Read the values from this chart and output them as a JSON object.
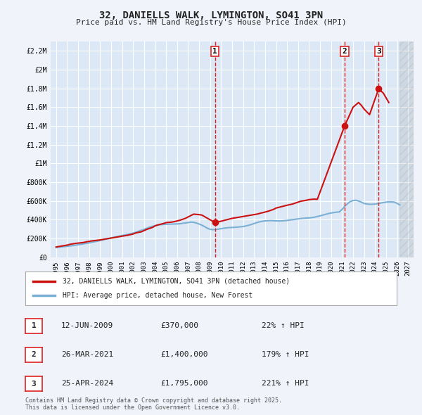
{
  "title_line1": "32, DANIELLS WALK, LYMINGTON, SO41 3PN",
  "title_line2": "Price paid vs. HM Land Registry's House Price Index (HPI)",
  "background_color": "#f0f4fa",
  "plot_bg_color": "#dce8f5",
  "grid_color": "#ffffff",
  "ylim": [
    0,
    2300000
  ],
  "yticks": [
    0,
    200000,
    400000,
    600000,
    800000,
    1000000,
    1200000,
    1400000,
    1600000,
    1800000,
    2000000,
    2200000
  ],
  "ytick_labels": [
    "£0",
    "£200K",
    "£400K",
    "£600K",
    "£800K",
    "£1M",
    "£1.2M",
    "£1.4M",
    "£1.6M",
    "£1.8M",
    "£2M",
    "£2.2M"
  ],
  "xlim_start": 1994.5,
  "xlim_end": 2027.5,
  "xticks": [
    1995,
    1996,
    1997,
    1998,
    1999,
    2000,
    2001,
    2002,
    2003,
    2004,
    2005,
    2006,
    2007,
    2008,
    2009,
    2010,
    2011,
    2012,
    2013,
    2014,
    2015,
    2016,
    2017,
    2018,
    2019,
    2020,
    2021,
    2022,
    2023,
    2024,
    2025,
    2026,
    2027
  ],
  "hpi_color": "#7ab0d4",
  "price_color": "#cc1111",
  "marker_color": "#cc1111",
  "vline_color": "#dd2222",
  "sale_points": [
    {
      "year": 2009.45,
      "price": 370000,
      "label": "1"
    },
    {
      "year": 2021.23,
      "price": 1400000,
      "label": "2"
    },
    {
      "year": 2024.32,
      "price": 1795000,
      "label": "3"
    }
  ],
  "vline_years": [
    2009.45,
    2021.23,
    2024.32
  ],
  "legend_line1": "32, DANIELLS WALK, LYMINGTON, SO41 3PN (detached house)",
  "legend_line2": "HPI: Average price, detached house, New Forest",
  "table_rows": [
    {
      "num": "1",
      "date": "12-JUN-2009",
      "price": "£370,000",
      "pct": "22% ↑ HPI"
    },
    {
      "num": "2",
      "date": "26-MAR-2021",
      "price": "£1,400,000",
      "pct": "179% ↑ HPI"
    },
    {
      "num": "3",
      "date": "25-APR-2024",
      "price": "£1,795,000",
      "pct": "221% ↑ HPI"
    }
  ],
  "footer": "Contains HM Land Registry data © Crown copyright and database right 2025.\nThis data is licensed under the Open Government Licence v3.0.",
  "hpi_data_x": [
    1995,
    1995.25,
    1995.5,
    1995.75,
    1996,
    1996.25,
    1996.5,
    1996.75,
    1997,
    1997.25,
    1997.5,
    1997.75,
    1998,
    1998.25,
    1998.5,
    1998.75,
    1999,
    1999.25,
    1999.5,
    1999.75,
    2000,
    2000.25,
    2000.5,
    2000.75,
    2001,
    2001.25,
    2001.5,
    2001.75,
    2002,
    2002.25,
    2002.5,
    2002.75,
    2003,
    2003.25,
    2003.5,
    2003.75,
    2004,
    2004.25,
    2004.5,
    2004.75,
    2005,
    2005.25,
    2005.5,
    2005.75,
    2006,
    2006.25,
    2006.5,
    2006.75,
    2007,
    2007.25,
    2007.5,
    2007.75,
    2008,
    2008.25,
    2008.5,
    2008.75,
    2009,
    2009.25,
    2009.5,
    2009.75,
    2010,
    2010.25,
    2010.5,
    2010.75,
    2011,
    2011.25,
    2011.5,
    2011.75,
    2012,
    2012.25,
    2012.5,
    2012.75,
    2013,
    2013.25,
    2013.5,
    2013.75,
    2014,
    2014.25,
    2014.5,
    2014.75,
    2015,
    2015.25,
    2015.5,
    2015.75,
    2016,
    2016.25,
    2016.5,
    2016.75,
    2017,
    2017.25,
    2017.5,
    2017.75,
    2018,
    2018.25,
    2018.5,
    2018.75,
    2019,
    2019.25,
    2019.5,
    2019.75,
    2020,
    2020.25,
    2020.5,
    2020.75,
    2021,
    2021.25,
    2021.5,
    2021.75,
    2022,
    2022.25,
    2022.5,
    2022.75,
    2023,
    2023.25,
    2023.5,
    2023.75,
    2024,
    2024.25,
    2024.5,
    2024.75,
    2025,
    2025.25,
    2025.5,
    2025.75,
    2026,
    2026.25
  ],
  "hpi_data_y": [
    105000,
    108000,
    111000,
    114000,
    117000,
    121000,
    125000,
    129000,
    134000,
    139000,
    144000,
    149000,
    154000,
    160000,
    166000,
    172000,
    179000,
    186000,
    193000,
    200000,
    207000,
    214000,
    220000,
    226000,
    232000,
    238000,
    244000,
    251000,
    258000,
    268000,
    278000,
    288000,
    298000,
    310000,
    322000,
    330000,
    338000,
    344000,
    348000,
    350000,
    352000,
    353000,
    354000,
    355000,
    356000,
    358000,
    362000,
    366000,
    370000,
    375000,
    373000,
    365000,
    355000,
    342000,
    327000,
    310000,
    298000,
    295000,
    296000,
    300000,
    305000,
    310000,
    314000,
    317000,
    318000,
    320000,
    322000,
    325000,
    328000,
    334000,
    341000,
    350000,
    360000,
    370000,
    378000,
    384000,
    388000,
    390000,
    391000,
    390000,
    388000,
    387000,
    388000,
    390000,
    393000,
    397000,
    401000,
    405000,
    409000,
    413000,
    416000,
    418000,
    420000,
    423000,
    428000,
    435000,
    442000,
    450000,
    458000,
    466000,
    472000,
    477000,
    481000,
    484000,
    510000,
    545000,
    572000,
    594000,
    605000,
    608000,
    600000,
    588000,
    574000,
    568000,
    565000,
    565000,
    567000,
    572000,
    578000,
    584000,
    588000,
    590000,
    590000,
    588000,
    575000,
    558000
  ],
  "price_data_x": [
    1995,
    1995.5,
    1996,
    1996.25,
    1996.75,
    1997.5,
    1997.75,
    1998.25,
    1999,
    1999.5,
    2000,
    2000.5,
    2001,
    2001.5,
    2002,
    2002.25,
    2002.75,
    2003,
    2003.25,
    2003.75,
    2004,
    2004.25,
    2004.75,
    2005,
    2005.5,
    2005.75,
    2006.25,
    2006.75,
    2007,
    2007.25,
    2007.5,
    2008,
    2008.25,
    2009.45,
    2010,
    2010.5,
    2011,
    2011.5,
    2012,
    2012.25,
    2012.75,
    2013.25,
    2013.75,
    2014.25,
    2014.75,
    2015,
    2015.5,
    2016,
    2016.5,
    2016.75,
    2017,
    2017.25,
    2017.75,
    2018,
    2018.25,
    2018.5,
    2018.75,
    2021.23,
    2022,
    2022.5,
    2022.75,
    2023,
    2023.25,
    2023.5,
    2024.32,
    2024.75,
    2025,
    2025.25
  ],
  "price_data_y": [
    110000,
    120000,
    130000,
    138000,
    148000,
    158000,
    165000,
    175000,
    185000,
    195000,
    205000,
    215000,
    225000,
    235000,
    248000,
    260000,
    272000,
    285000,
    298000,
    318000,
    335000,
    345000,
    360000,
    370000,
    375000,
    380000,
    395000,
    415000,
    430000,
    445000,
    460000,
    455000,
    450000,
    370000,
    385000,
    400000,
    415000,
    425000,
    435000,
    440000,
    450000,
    460000,
    475000,
    490000,
    510000,
    525000,
    540000,
    555000,
    568000,
    578000,
    588000,
    598000,
    608000,
    615000,
    618000,
    620000,
    618000,
    1400000,
    1600000,
    1650000,
    1620000,
    1580000,
    1550000,
    1520000,
    1795000,
    1750000,
    1700000,
    1650000
  ]
}
